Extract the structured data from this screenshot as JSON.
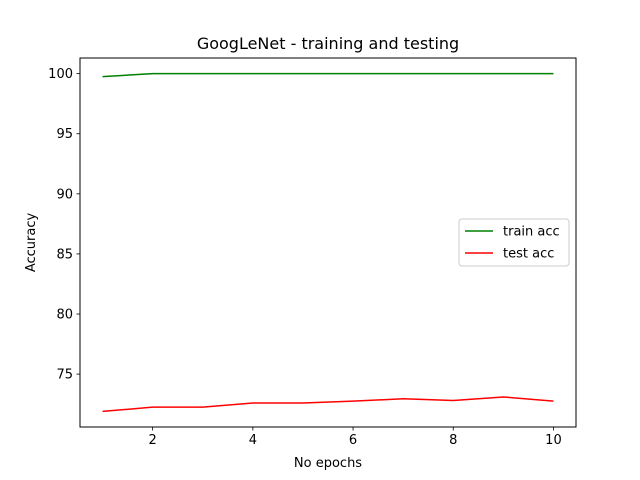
{
  "chart_data": {
    "type": "line",
    "title": "GoogLeNet - training and testing",
    "xlabel": "No epochs",
    "ylabel": "Accuracy",
    "xlim": [
      0.55,
      10.45
    ],
    "ylim": [
      70.6,
      101.3
    ],
    "xticks": [
      2,
      4,
      6,
      8,
      10
    ],
    "yticks": [
      75,
      80,
      85,
      90,
      95,
      100
    ],
    "grid": false,
    "legend_position": "center-right",
    "x": [
      1,
      2,
      3,
      4,
      5,
      6,
      7,
      8,
      9,
      10
    ],
    "series": [
      {
        "name": "train acc",
        "color": "#008000",
        "values": [
          99.75,
          100.0,
          100.0,
          100.0,
          100.0,
          100.0,
          100.0,
          100.0,
          100.0,
          100.0
        ]
      },
      {
        "name": "test acc",
        "color": "#ff0000",
        "values": [
          71.9,
          72.25,
          72.25,
          72.6,
          72.6,
          72.75,
          72.95,
          72.8,
          73.1,
          72.75
        ]
      }
    ]
  }
}
